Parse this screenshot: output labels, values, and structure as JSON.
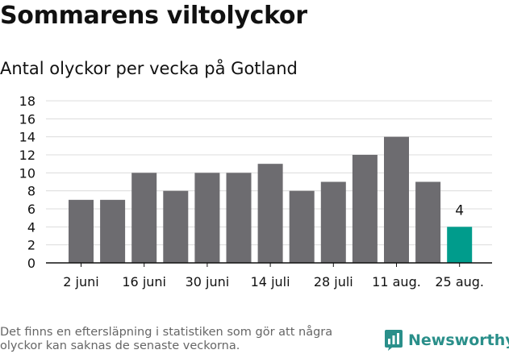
{
  "title": "Sommarens viltolyckor",
  "subtitle": "Antal olyckor per vecka på Gotland",
  "footnote": "Det finns en eftersläpning i statistiken som gör att några olyckor kan saknas de senaste veckorna.",
  "brand": {
    "name": "Newsworthy",
    "icon": "bar-chart-logo-icon",
    "color": "#2a8f8a"
  },
  "chart_data": {
    "type": "bar",
    "values": [
      7,
      7,
      10,
      8,
      10,
      10,
      11,
      8,
      9,
      12,
      14,
      9,
      4
    ],
    "x_tick_labels": [
      "2 juni",
      "16 juni",
      "30 juni",
      "14 juli",
      "28 juli",
      "11 aug.",
      "25 aug."
    ],
    "x_tick_positions": [
      0,
      2,
      4,
      6,
      8,
      10,
      12
    ],
    "y_ticks": [
      0,
      2,
      4,
      6,
      8,
      10,
      12,
      14,
      16,
      18
    ],
    "ylim": [
      0,
      18
    ],
    "grid": true,
    "highlight_index": 12,
    "highlight_label": "4",
    "bar_color": "#6d6c70",
    "highlight_color": "#009c8c"
  }
}
